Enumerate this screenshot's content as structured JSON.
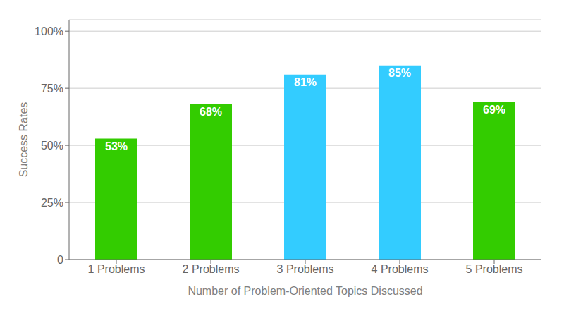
{
  "chart_data": {
    "type": "bar",
    "categories": [
      "1 Problems",
      "2 Problems",
      "3 Problems",
      "4 Problems",
      "5 Problems"
    ],
    "values": [
      53,
      68,
      81,
      85,
      69
    ],
    "value_labels": [
      "53%",
      "68%",
      "81%",
      "85%",
      "69%"
    ],
    "data_labels": true,
    "colors": [
      "#33cc00",
      "#33cc00",
      "#33ccff",
      "#33ccff",
      "#33cc00"
    ],
    "xlabel": "Number of Problem-Oriented Topics Discussed",
    "ylabel": "Success Rates",
    "ylim": [
      0,
      105
    ],
    "yticks": [
      0,
      {
        "value": 25,
        "label": "25%"
      },
      {
        "value": 50,
        "label": "50%"
      },
      {
        "value": 75,
        "label": "75%"
      },
      {
        "value": 100,
        "label": "100%"
      }
    ],
    "grid": true
  }
}
